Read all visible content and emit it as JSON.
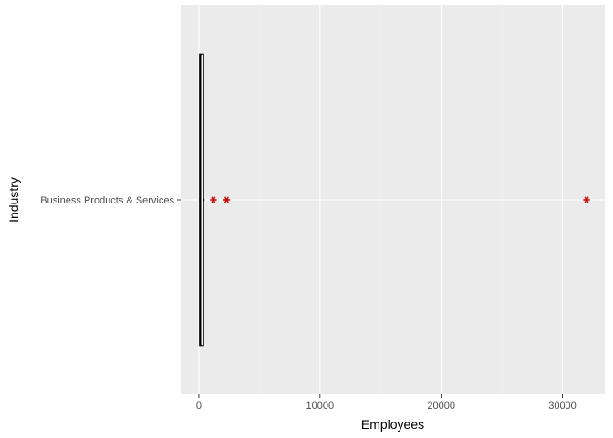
{
  "chart_data": {
    "type": "boxplot",
    "orientation": "horizontal",
    "title": "",
    "xlabel": "Employees",
    "ylabel": "Industry",
    "xlim": [
      -1500,
      33500
    ],
    "xticks": [
      0,
      10000,
      20000,
      30000
    ],
    "xtick_labels": [
      "0",
      "10000",
      "20000",
      "30000"
    ],
    "grid": true,
    "legend": "none",
    "categories": [
      "Business Products & Services"
    ],
    "boxes": [
      {
        "category": "Business Products & Services",
        "min": 10,
        "q1": 60,
        "median": 120,
        "q3": 400,
        "max": 500,
        "outliers": [
          1200,
          2300,
          32000
        ]
      }
    ],
    "colors": {
      "panel_background": "#ebebeb",
      "grid_major": "#ffffff",
      "grid_minor": "#f3f3f3",
      "box_outline": "#000000",
      "box_fill": "#ffffff",
      "outlier": "#cc0000"
    }
  }
}
